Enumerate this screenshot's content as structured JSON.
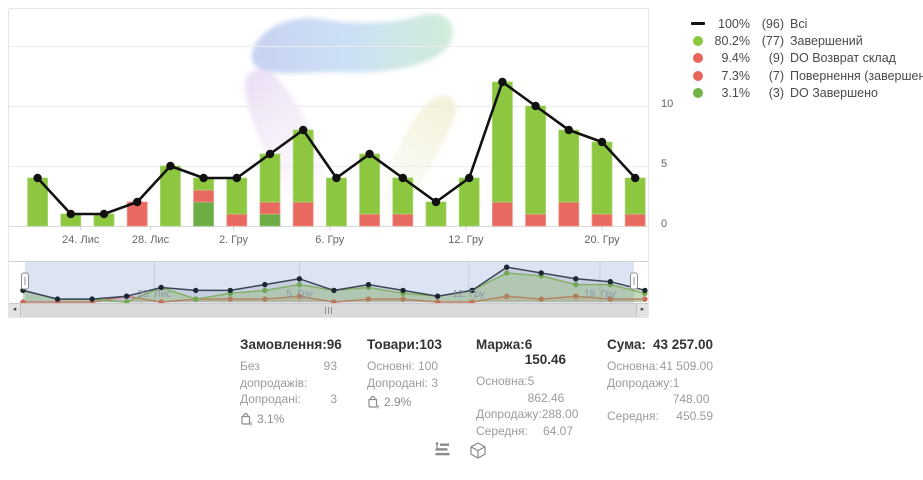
{
  "legend": {
    "items": [
      {
        "swatch": "line",
        "color": "#111111",
        "percent": "100%",
        "count": "(96)",
        "label": "Всі"
      },
      {
        "swatch": "dot",
        "color": "#8dc63f",
        "percent": "80.2%",
        "count": "(77)",
        "label": "Завершений"
      },
      {
        "swatch": "dot",
        "color": "#e8655b",
        "percent": "9.4%",
        "count": "(9)",
        "label": "DO Возврат склад"
      },
      {
        "swatch": "dot",
        "color": "#e8655b",
        "percent": "7.3%",
        "count": "(7)",
        "label": "Повернення (завершений)"
      },
      {
        "swatch": "dot",
        "color": "#72b445",
        "percent": "3.1%",
        "count": "(3)",
        "label": "DO Завершено"
      }
    ]
  },
  "chart_data": [
    {
      "type": "bar",
      "stacked": true,
      "n_points": 19,
      "ylim": [
        0,
        15.5
      ],
      "yticks": [
        "0",
        "5",
        "10"
      ],
      "ytick_values": [
        0,
        5,
        10
      ],
      "gridline_values": [
        0,
        5,
        10,
        15
      ],
      "x_ticks": [
        {
          "label": "24. Лис",
          "at": 1.3
        },
        {
          "label": "28. Лис",
          "at": 3.4
        },
        {
          "label": "2. Гру",
          "at": 5.9
        },
        {
          "label": "6. Гру",
          "at": 8.8
        },
        {
          "label": "12. Гру",
          "at": 12.9
        },
        {
          "label": "20. Гру",
          "at": 17.0
        }
      ],
      "series": [
        {
          "name": "Всі",
          "type": "line",
          "color": "#111111",
          "values": [
            4,
            1,
            1,
            2,
            5,
            4,
            4,
            6,
            8,
            4,
            6,
            4,
            2,
            4,
            12,
            10,
            8,
            7,
            4
          ]
        },
        {
          "name": "Завершений",
          "type": "bar",
          "color": "#8dc63f",
          "border": "#a9d673",
          "values": [
            4,
            1,
            1,
            0,
            5,
            1,
            3,
            4,
            6,
            4,
            5,
            3,
            2,
            4,
            10,
            9,
            6,
            6,
            3
          ]
        },
        {
          "name": "Повернення / DO Возврат (red)",
          "type": "bar",
          "color": "#e8695f",
          "border": "#f0968d",
          "values": [
            0,
            0,
            0,
            2,
            0,
            1,
            1,
            1,
            2,
            0,
            1,
            1,
            0,
            0,
            2,
            1,
            2,
            1,
            1
          ]
        },
        {
          "name": "DO Завершено",
          "type": "bar",
          "color": "#6cae45",
          "border": "#8cc46a",
          "values": [
            0,
            0,
            0,
            0,
            0,
            2,
            0,
            1,
            0,
            0,
            0,
            0,
            0,
            0,
            0,
            0,
            0,
            0,
            0
          ]
        }
      ],
      "stack_bottom_to_top": [
        "DO Завершено",
        "Повернення / DO Возврат (red)",
        "Завершений"
      ]
    },
    {
      "type": "line",
      "role": "navigator",
      "n_points": 19,
      "selection_color": "#dce3f3",
      "x_ticks": [
        {
          "label": "28. Лис",
          "at": 3.8
        },
        {
          "label": "5. Гру",
          "at": 8.0
        },
        {
          "label": "12. Гру",
          "at": 12.9
        },
        {
          "label": "19. Гру",
          "at": 16.7
        }
      ],
      "series": [
        {
          "name": "Всі",
          "color": "#3a4656",
          "dot": "#1c2733",
          "fill": "rgba(110,125,145,0.20)",
          "values": [
            4,
            1,
            1,
            2,
            5,
            4,
            4,
            6,
            8,
            4,
            6,
            4,
            2,
            4,
            12,
            10,
            8,
            7,
            4
          ]
        },
        {
          "name": "Завершений",
          "color": "#8abf5d",
          "dot": "#74b24a",
          "fill": "rgba(141,198,63,0.30)",
          "values": [
            4,
            1,
            1,
            0,
            5,
            1,
            3,
            4,
            6,
            4,
            5,
            3,
            2,
            4,
            10,
            9,
            6,
            6,
            3
          ]
        },
        {
          "name": "Повернення / DO Возврат (red)",
          "color": "#db7268",
          "dot": "#d95f55",
          "fill": "rgba(232,101,91,0.22)",
          "values": [
            0,
            0,
            0,
            2,
            0,
            1,
            1,
            1,
            2,
            0,
            1,
            1,
            0,
            0,
            2,
            1,
            2,
            1,
            1
          ]
        }
      ]
    }
  ],
  "scrollbar": {
    "left_arrow": "◂",
    "right_arrow": "▸",
    "grip": "scroll-grip"
  },
  "stats": {
    "columns": [
      {
        "title": "Замовлення:",
        "value": "96",
        "rows": [
          [
            "Без допродажів:",
            "93"
          ],
          [
            "Допродані:",
            "3"
          ]
        ],
        "badge": {
          "icon": "bag-x-icon",
          "value": "3.1%"
        }
      },
      {
        "title": "Товари:",
        "value": "103",
        "rows": [
          [
            "Основні:",
            "100"
          ],
          [
            "Допродані:",
            "3"
          ]
        ],
        "badge": {
          "icon": "bag-x-icon",
          "value": "2.9%"
        }
      },
      {
        "title": "Маржа:",
        "value": "6 150.46",
        "rows": [
          [
            "Основна:",
            "5 862.46"
          ],
          [
            "Допродажу:",
            "288.00"
          ],
          [
            "Середня:",
            "64.07"
          ]
        ]
      },
      {
        "title": "Сума:",
        "value": "43 257.00",
        "rows": [
          [
            "Основна:",
            "41 509.00"
          ],
          [
            "Допродажу:",
            "1 748.00"
          ],
          [
            "Середня:",
            "450.59"
          ]
        ]
      }
    ]
  },
  "footer": {
    "icons": [
      {
        "name": "stats-list-icon"
      },
      {
        "name": "package-icon"
      }
    ]
  }
}
